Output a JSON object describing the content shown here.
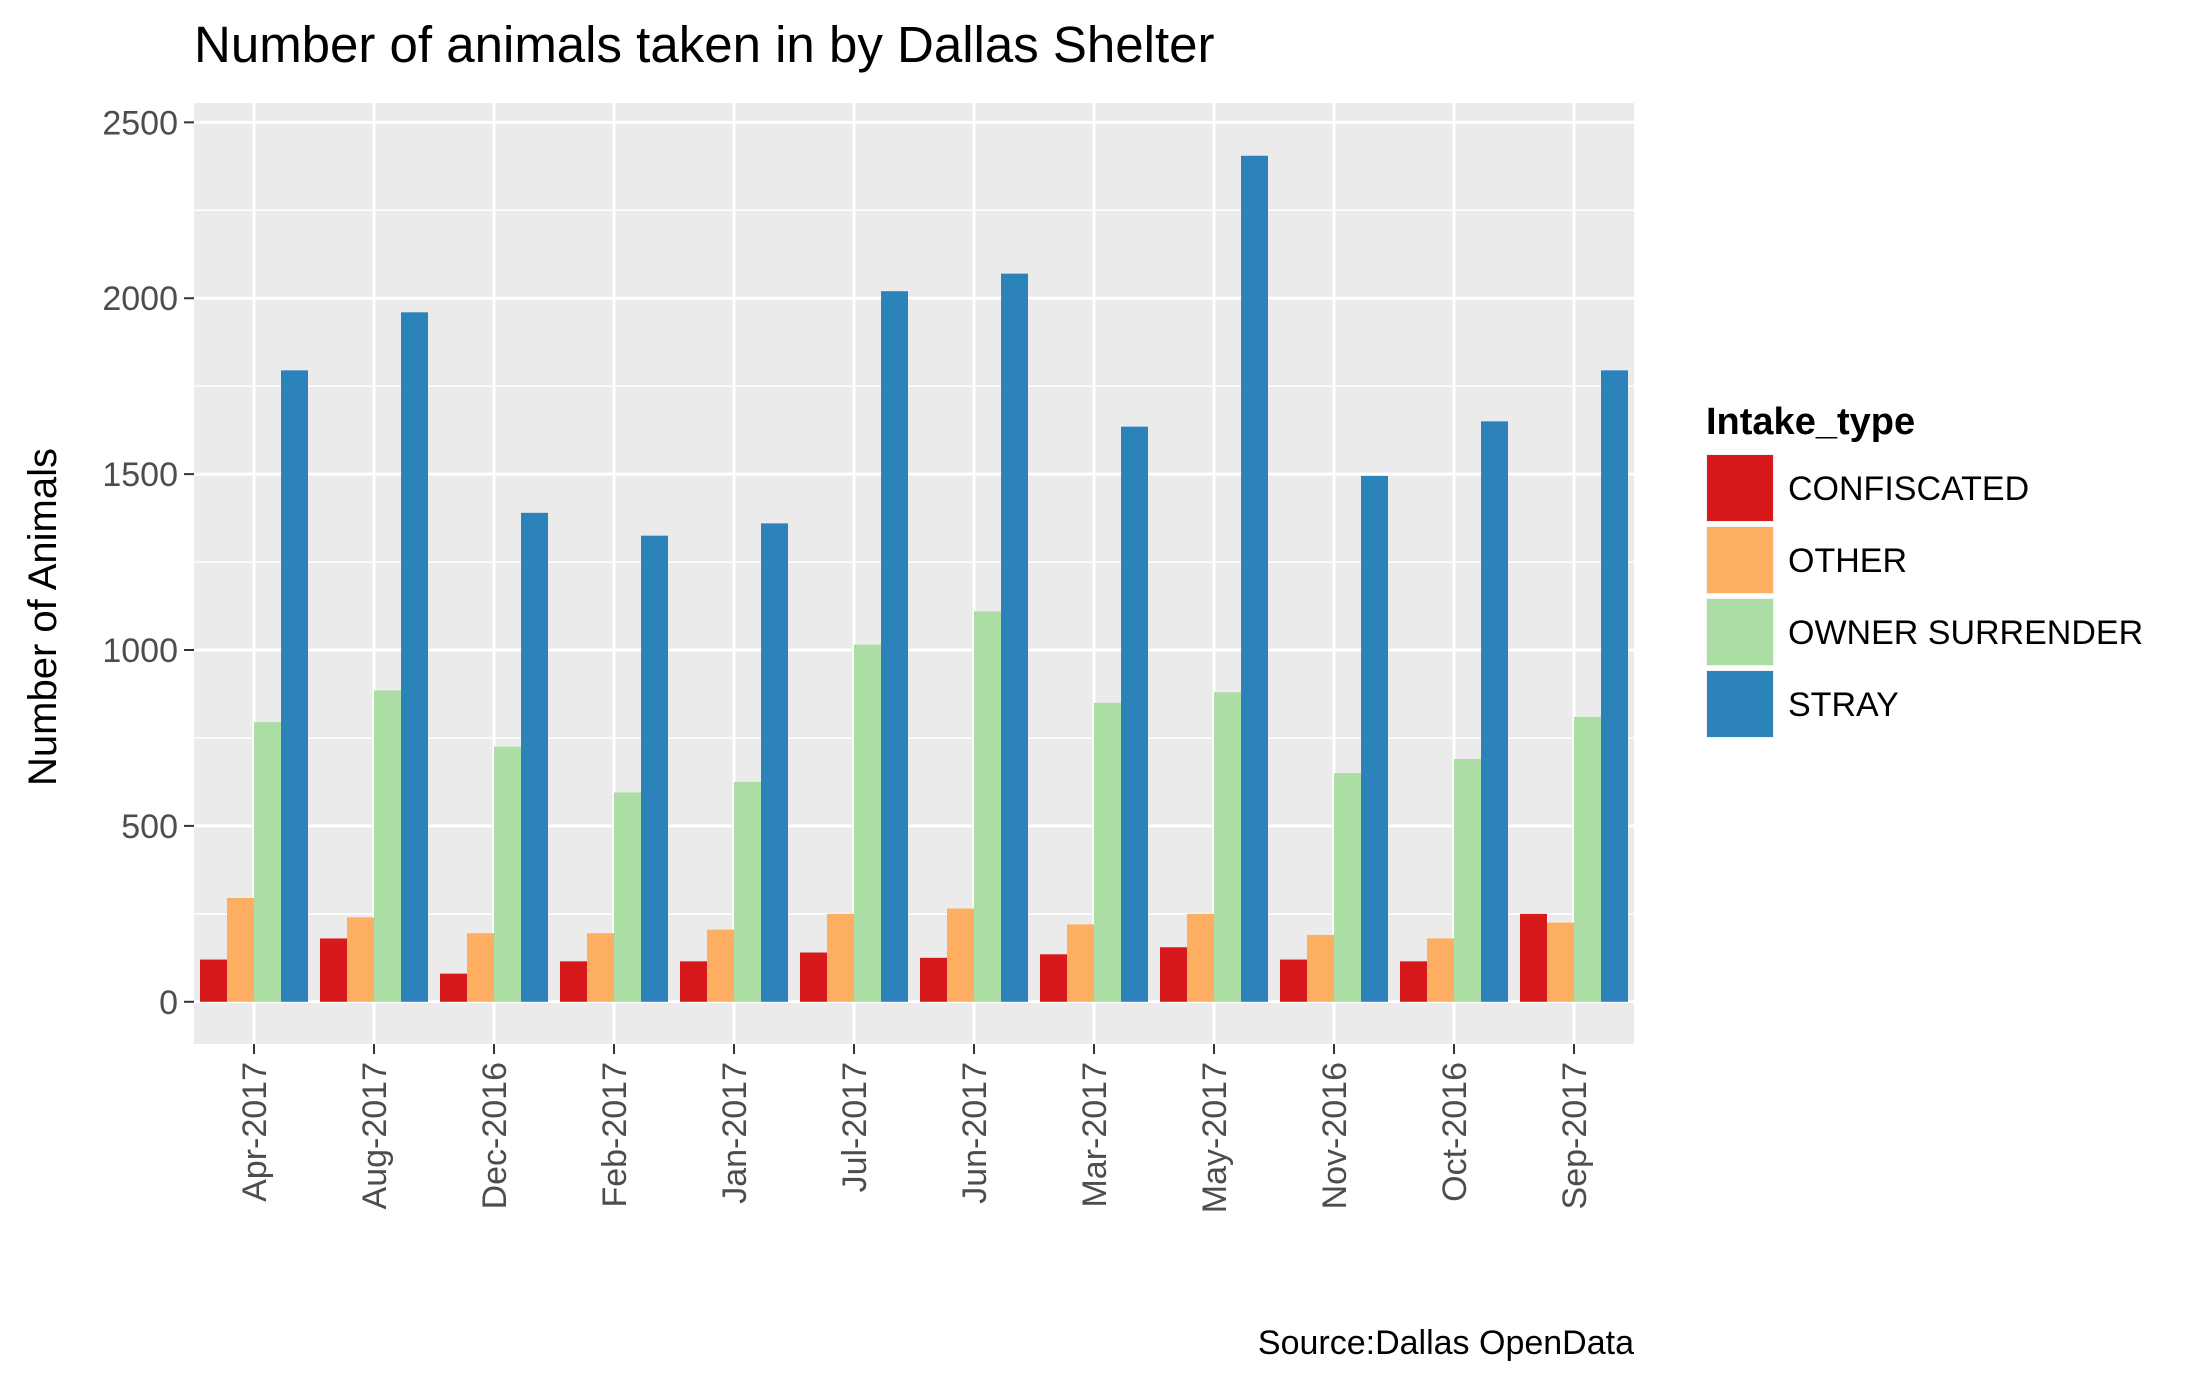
{
  "chart_data": {
    "type": "bar",
    "title": "Number of animals taken in by Dallas Shelter",
    "xlabel": "",
    "ylabel": "Number of Animals",
    "caption": "Source:Dallas OpenData",
    "ylim": [
      -120,
      2555
    ],
    "yticks": [
      0,
      500,
      1000,
      1500,
      2000,
      2500
    ],
    "grid": true,
    "legend_position": "right",
    "legend_title": "Intake_type",
    "categories": [
      "Apr-2017",
      "Aug-2017",
      "Dec-2016",
      "Feb-2017",
      "Jan-2017",
      "Jul-2017",
      "Jun-2017",
      "Mar-2017",
      "May-2017",
      "Nov-2016",
      "Oct-2016",
      "Sep-2017"
    ],
    "series": [
      {
        "name": "CONFISCATED",
        "color": "#D7191C",
        "values": [
          120,
          180,
          80,
          115,
          115,
          140,
          125,
          135,
          155,
          120,
          115,
          250
        ]
      },
      {
        "name": "OTHER",
        "color": "#FDAE61",
        "values": [
          295,
          240,
          195,
          195,
          205,
          250,
          265,
          220,
          250,
          190,
          180,
          225
        ]
      },
      {
        "name": "OWNER SURRENDER",
        "color": "#ABDDA4",
        "values": [
          795,
          885,
          725,
          595,
          625,
          1015,
          1110,
          850,
          880,
          650,
          690,
          810
        ]
      },
      {
        "name": "STRAY",
        "color": "#2B83BA",
        "values": [
          1795,
          1960,
          1390,
          1325,
          1360,
          2020,
          2070,
          1635,
          2405,
          1495,
          1650,
          1795
        ]
      }
    ]
  }
}
